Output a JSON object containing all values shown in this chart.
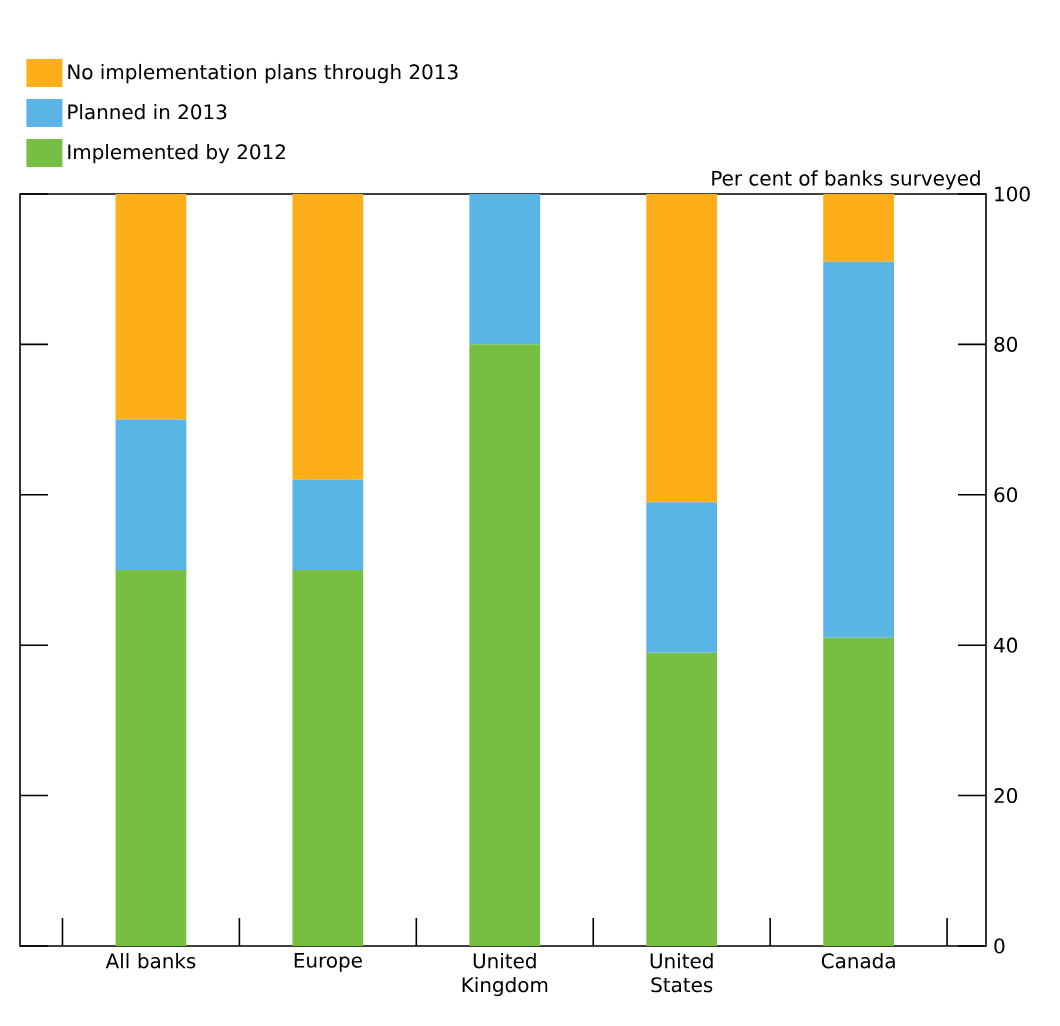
{
  "chart_data": {
    "type": "bar",
    "stacked": true,
    "ylabel": "Per cent of banks surveyed",
    "categories": [
      "All banks",
      "Europe",
      "United Kingdom",
      "United States",
      "Canada"
    ],
    "series": [
      {
        "name": "Implemented by 2012",
        "color": "#77bf43",
        "values": [
          50,
          50,
          80,
          39,
          41
        ]
      },
      {
        "name": "Planned in 2013",
        "color": "#5ab4e6",
        "values": [
          20,
          12,
          20,
          20,
          50
        ]
      },
      {
        "name": "No implementation plans through 2013",
        "color": "#fdae19",
        "values": [
          30,
          38,
          0,
          41,
          9
        ]
      }
    ],
    "ylim": [
      0,
      100
    ],
    "yticks": [
      0,
      20,
      40,
      60,
      80,
      100
    ],
    "legend": "top left",
    "grid": false
  }
}
